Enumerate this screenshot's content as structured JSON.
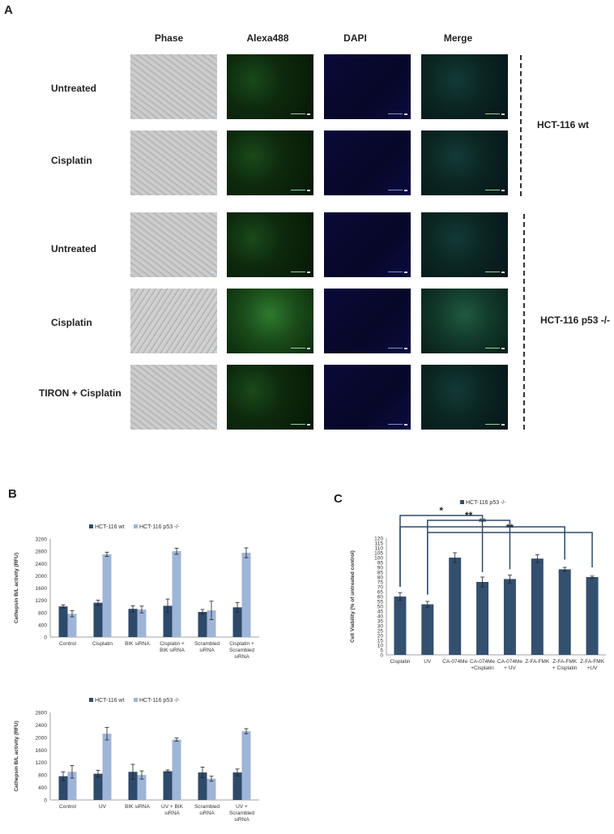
{
  "panels": {
    "a": "A",
    "b": "B",
    "c": "C"
  },
  "micrograph": {
    "columns": [
      "Phase",
      "Alexa488",
      "DAPI",
      "Merge"
    ],
    "rows": [
      "Untreated",
      "Cisplatin",
      "Untreated",
      "Cisplatin",
      "TIRON + Cisplatin"
    ],
    "groups": [
      "HCT-116 wt",
      "HCT-116 p53 -/-"
    ]
  },
  "colors": {
    "wt": "#2e4a6b",
    "p53": "#9fb5d8",
    "bar": "#34506f",
    "err": "#222222",
    "bracket": "#2e4a6b"
  },
  "chart_data": [
    {
      "type": "bar",
      "legend": [
        "HCT-116 wt",
        "HCT-116 p53 -/-"
      ],
      "ylabel": "Cathepsin B/L activity (RFU)",
      "ylim": [
        0,
        3200
      ],
      "yticks": [
        0,
        400,
        800,
        1200,
        1600,
        2000,
        2400,
        2800,
        3200
      ],
      "categories": [
        [
          "Control"
        ],
        [
          "Cisplatin"
        ],
        [
          "BIK siRNA"
        ],
        [
          "Cisplatin +",
          "BIK siRNA"
        ],
        [
          "Scrambled",
          "siRNA"
        ],
        [
          "Cisplatin +",
          "Scrambled",
          "siRNA"
        ]
      ],
      "series": [
        {
          "name": "HCT-116 wt",
          "values": [
            1000,
            1120,
            920,
            1020,
            820,
            970
          ],
          "errors": [
            50,
            80,
            100,
            220,
            80,
            160
          ]
        },
        {
          "name": "HCT-116 p53 -/-",
          "values": [
            760,
            2700,
            900,
            2800,
            870,
            2750
          ],
          "errors": [
            100,
            70,
            110,
            100,
            300,
            160
          ]
        }
      ]
    },
    {
      "type": "bar",
      "legend": [
        "HCT-116 wt",
        "HCT-116 p53 -/-"
      ],
      "ylabel": "Cathepsin B/L activity (RFU)",
      "ylim": [
        0,
        2800
      ],
      "yticks": [
        0,
        400,
        800,
        1200,
        1600,
        2000,
        2400,
        2800
      ],
      "categories": [
        [
          "Control"
        ],
        [
          "UV"
        ],
        [
          "BIK siRNA"
        ],
        [
          "UV + BIK",
          "siRNA"
        ],
        [
          "Scrambled",
          "siRNA"
        ],
        [
          "UV +",
          "Scrambled",
          "siRNA"
        ]
      ],
      "series": [
        {
          "name": "HCT-116 wt",
          "values": [
            760,
            840,
            900,
            920,
            880,
            880
          ],
          "errors": [
            140,
            110,
            240,
            40,
            170,
            110
          ]
        },
        {
          "name": "HCT-116 p53 -/-",
          "values": [
            900,
            2120,
            800,
            1930,
            680,
            2200
          ],
          "errors": [
            200,
            200,
            130,
            50,
            80,
            80
          ]
        }
      ]
    },
    {
      "type": "bar",
      "legend": [
        "HCT-116 p53 -/-"
      ],
      "ylabel": "Cell Viability (% of untreated control)",
      "ylim": [
        0,
        120
      ],
      "yticks": [
        0,
        5,
        10,
        15,
        20,
        25,
        30,
        35,
        40,
        45,
        50,
        55,
        60,
        65,
        70,
        75,
        80,
        85,
        90,
        95,
        100,
        105,
        110,
        115,
        120
      ],
      "categories": [
        [
          "Cisplatin"
        ],
        [
          "UV"
        ],
        [
          "CA-074Me"
        ],
        [
          "CA-074Me",
          "+Cisplatin"
        ],
        [
          "CA-074Me",
          "+ UV"
        ],
        [
          "Z-FA-FMK"
        ],
        [
          "Z-FA-FMK",
          "+ Cisplatin"
        ],
        [
          "Z-FA-FMK",
          "+UV"
        ]
      ],
      "series": [
        {
          "name": "HCT-116 p53 -/-",
          "values": [
            60,
            52,
            100,
            75,
            78,
            99,
            88,
            80
          ],
          "errors": [
            4,
            3,
            5,
            5,
            4,
            4,
            2,
            1
          ]
        }
      ],
      "annotations": [
        {
          "from": 0,
          "to": 3,
          "label": "*"
        },
        {
          "from": 0,
          "to": 6,
          "label": "**"
        },
        {
          "from": 1,
          "to": 4,
          "label": "**"
        },
        {
          "from": 1,
          "to": 7,
          "label": "**"
        }
      ]
    }
  ]
}
